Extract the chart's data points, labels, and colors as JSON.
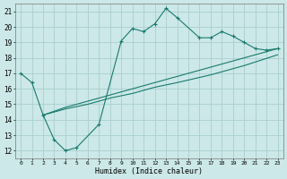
{
  "xlabel": "Humidex (Indice chaleur)",
  "background_color": "#cce8e8",
  "grid_color": "#aacece",
  "line_color": "#1a7a6e",
  "xlim": [
    -0.5,
    23.5
  ],
  "ylim": [
    11.5,
    21.5
  ],
  "xticks": [
    0,
    1,
    2,
    3,
    4,
    5,
    6,
    7,
    8,
    9,
    10,
    11,
    12,
    13,
    14,
    15,
    16,
    17,
    18,
    19,
    20,
    21,
    22,
    23
  ],
  "yticks": [
    12,
    13,
    14,
    15,
    16,
    17,
    18,
    19,
    20,
    21
  ],
  "line1_x": [
    0,
    1,
    2,
    3,
    4,
    5,
    7,
    9,
    10,
    11,
    12,
    13,
    14,
    16,
    17,
    18,
    19,
    20,
    21,
    22,
    23
  ],
  "line1_y": [
    17.0,
    16.4,
    14.3,
    12.7,
    12.0,
    12.2,
    13.7,
    19.1,
    19.9,
    19.7,
    20.2,
    21.2,
    20.6,
    19.3,
    19.3,
    19.7,
    19.4,
    19.0,
    18.6,
    18.5,
    18.6
  ],
  "line2_x": [
    2,
    4,
    6,
    8,
    10,
    12,
    14,
    17,
    20,
    23
  ],
  "line2_y": [
    14.3,
    14.8,
    15.2,
    15.6,
    16.0,
    16.4,
    16.8,
    17.4,
    18.0,
    18.6
  ],
  "line3_x": [
    2,
    4,
    6,
    8,
    10,
    12,
    14,
    17,
    20,
    23
  ],
  "line3_y": [
    14.3,
    14.7,
    15.0,
    15.4,
    15.7,
    16.1,
    16.4,
    16.9,
    17.5,
    18.2
  ]
}
